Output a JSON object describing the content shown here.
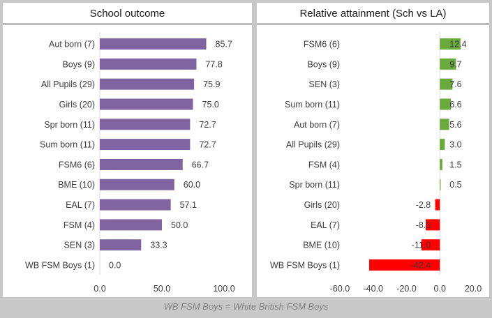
{
  "chart_data": [
    {
      "type": "bar",
      "orientation": "horizontal",
      "title": "School outcome",
      "categories": [
        "Aut born (7)",
        "Boys (9)",
        "All Pupils (29)",
        "Girls (20)",
        "Spr born (11)",
        "Sum born (11)",
        "FSM6 (6)",
        "BME (10)",
        "EAL (7)",
        "FSM (4)",
        "SEN (3)",
        "WB FSM Boys (1)"
      ],
      "values": [
        85.7,
        77.8,
        75.9,
        75.0,
        72.7,
        72.7,
        66.7,
        60.0,
        57.1,
        50.0,
        33.3,
        0.0
      ],
      "value_labels": [
        "85.7",
        "77.8",
        "75.9",
        "75.0",
        "72.7",
        "72.7",
        "66.7",
        "60.0",
        "57.1",
        "50.0",
        "33.3",
        "0.0"
      ],
      "xlim": [
        0,
        100
      ],
      "xticks": [
        "0.0",
        "50.0",
        "100.0"
      ],
      "bar_color": "#8064a2",
      "grid": false
    },
    {
      "type": "bar",
      "orientation": "horizontal",
      "title": "Relative attainment (Sch vs LA)",
      "categories": [
        "FSM6 (6)",
        "Boys (9)",
        "SEN (3)",
        "Sum born (11)",
        "Aut born (7)",
        "All Pupils (29)",
        "FSM (4)",
        "Spr born (11)",
        "Girls (20)",
        "EAL (7)",
        "BME (10)",
        "WB FSM Boys (1)"
      ],
      "values": [
        12.4,
        9.7,
        7.6,
        6.6,
        5.6,
        3.0,
        1.5,
        0.5,
        -2.8,
        -8.5,
        -11.0,
        -42.4
      ],
      "value_labels": [
        "12.4",
        "9.7",
        "7.6",
        "6.6",
        "5.6",
        "3.0",
        "1.5",
        "0.5",
        "-2.8",
        "-8.5",
        "-11.0",
        "-42.4"
      ],
      "xlim": [
        -60,
        20
      ],
      "xticks": [
        "-60.0",
        "-40.0",
        "-20.0",
        "0.0",
        "20.0"
      ],
      "positive_color": "#6aaa3a",
      "negative_color": "#ff0000",
      "grid": false
    }
  ],
  "footnote": "WB FSM Boys = White British FSM Boys"
}
